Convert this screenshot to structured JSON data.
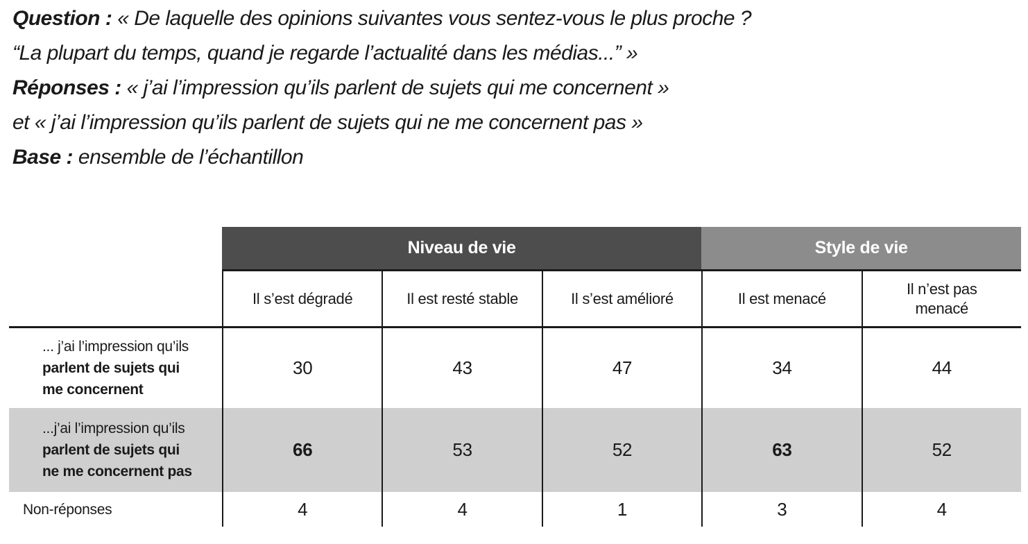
{
  "intro": {
    "lines": [
      {
        "label": "Question :",
        "text": "« De laquelle des opinions suivantes vous sentez-vous le plus proche ?"
      },
      {
        "label": "",
        "text": "“La plupart du temps, quand je regarde l’actualité dans les médias...” »"
      },
      {
        "label": "Réponses :",
        "text": "« j’ai l’impression qu’ils parlent de sujets qui me concernent »"
      },
      {
        "label": "",
        "text": "et « j’ai l’impression qu’ils parlent de sujets qui ne me concernent pas »"
      },
      {
        "label": "Base :",
        "text": "ensemble de l’échantillon"
      }
    ]
  },
  "table": {
    "group_headers": [
      {
        "label": "Niveau de vie",
        "colspan": 3,
        "color": "#4d4d4d"
      },
      {
        "label": "Style de vie",
        "colspan": 2,
        "color": "#8c8c8c"
      }
    ],
    "column_headers": [
      "Il s’est dégradé",
      "Il est resté stable",
      "Il s’est amélioré",
      "Il est menacé",
      "Il n’est pas\nmenacé"
    ],
    "rows": [
      {
        "label_regular": "... j’ai l’impression qu’ils",
        "label_bold": "parlent de sujets qui\nme concernent",
        "values": [
          "30",
          "43",
          "47",
          "34",
          "44"
        ],
        "bold_values": [
          false,
          false,
          false,
          false,
          false
        ],
        "shaded": false
      },
      {
        "label_regular": "...j’ai l’impression qu’ils",
        "label_bold": "parlent de sujets qui\nne me concernent pas",
        "values": [
          "66",
          "53",
          "52",
          "63",
          "52"
        ],
        "bold_values": [
          true,
          false,
          false,
          true,
          false
        ],
        "shaded": true
      },
      {
        "label_regular": "Non-réponses",
        "label_bold": "",
        "values": [
          "4",
          "4",
          "1",
          "3",
          "4"
        ],
        "bold_values": [
          false,
          false,
          false,
          false,
          false
        ],
        "shaded": false
      }
    ]
  },
  "colors": {
    "band_dark": "#4d4d4d",
    "band_light": "#8c8c8c",
    "row_shaded": "#cfcfcf",
    "border": "#1a1a1a",
    "text": "#1a1a1a",
    "background": "#ffffff"
  }
}
